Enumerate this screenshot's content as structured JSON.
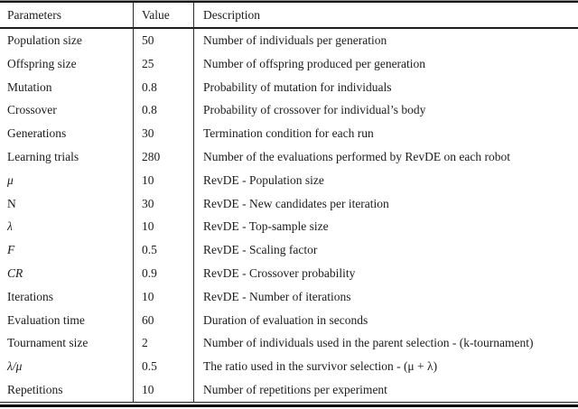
{
  "table": {
    "columns": {
      "param": "Parameters",
      "value": "Value",
      "desc": "Description"
    },
    "rows": [
      {
        "param": "Population size",
        "value": "50",
        "desc": "Number of individuals per generation",
        "italic": false
      },
      {
        "param": "Offspring size",
        "value": "25",
        "desc": "Number of offspring produced per generation",
        "italic": false
      },
      {
        "param": "Mutation",
        "value": "0.8",
        "desc": "Probability of mutation for individuals",
        "italic": false
      },
      {
        "param": "Crossover",
        "value": "0.8",
        "desc": "Probability of crossover for individual’s body",
        "italic": false
      },
      {
        "param": "Generations",
        "value": "30",
        "desc": "Termination condition for each run",
        "italic": false
      },
      {
        "param": "Learning trials",
        "value": "280",
        "desc": "Number of the evaluations performed by RevDE on each robot",
        "italic": false
      },
      {
        "param": "μ",
        "value": "10",
        "desc": "RevDE - Population size",
        "italic": true
      },
      {
        "param": "N",
        "value": "30",
        "desc": "RevDE - New candidates per iteration",
        "italic": false
      },
      {
        "param": "λ",
        "value": "10",
        "desc": "RevDE - Top-sample size",
        "italic": true
      },
      {
        "param": "F",
        "value": "0.5",
        "desc": "RevDE - Scaling factor",
        "italic": true
      },
      {
        "param": "CR",
        "value": "0.9",
        "desc": "RevDE - Crossover probability",
        "italic": true
      },
      {
        "param": "Iterations",
        "value": "10",
        "desc": "RevDE - Number of iterations",
        "italic": false
      },
      {
        "param": "Evaluation time",
        "value": "60",
        "desc": "Duration of evaluation in seconds",
        "italic": false
      },
      {
        "param": "Tournament size",
        "value": "2",
        "desc": "Number of individuals used in the parent selection - (k-tournament)",
        "italic": false
      },
      {
        "param": "λ/μ",
        "value": "0.5",
        "desc": "The ratio used in the survivor selection - (μ + λ)",
        "italic": true
      },
      {
        "param": "Repetitions",
        "value": "10",
        "desc": "Number of repetitions per experiment",
        "italic": false
      }
    ]
  },
  "colors": {
    "background": "#ffffff",
    "text": "#1b1b1b",
    "rule": "#161616"
  }
}
